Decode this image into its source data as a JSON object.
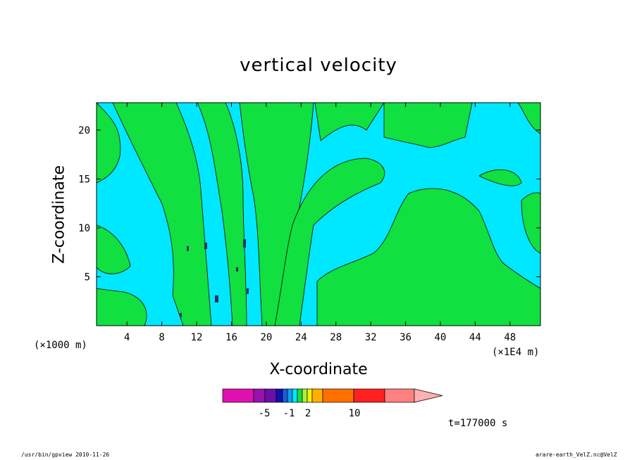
{
  "chart_data": {
    "type": "heatmap",
    "title": "vertical velocity",
    "xlabel": "X-coordinate",
    "ylabel": "Z-coordinate",
    "x_unit_left": "(×1000 m)",
    "x_unit_right": "(×1E4 m)",
    "xticks": [
      4,
      8,
      12,
      16,
      20,
      24,
      28,
      32,
      36,
      40,
      44,
      48
    ],
    "yticks": [
      5,
      10,
      15,
      20
    ],
    "xlim": [
      0.5,
      51.5
    ],
    "ylim": [
      0,
      22.8
    ],
    "colorbar": {
      "levels": [
        -7,
        -5,
        -3,
        -2,
        -1,
        0,
        1,
        2,
        3,
        5,
        10,
        15,
        20
      ],
      "tick_labels": [
        {
          "label": "-5",
          "value": -5
        },
        {
          "label": "-1",
          "value": -1
        },
        {
          "label": "2",
          "value": 2
        },
        {
          "label": "10",
          "value": 10
        }
      ],
      "colors": [
        "#e010b0",
        "#9a10b0",
        "#6a10a8",
        "#1010b0",
        "#1060e0",
        "#10a0f0",
        "#00e8ff",
        "#10e040",
        "#a8f040",
        "#f8f000",
        "#ffb000",
        "#ff7000",
        "#ff2020",
        "#ff8080"
      ]
    },
    "colors": {
      "negative": "#00e8ff",
      "positive": "#10e040",
      "strong_negative": "#1010b0",
      "strong_positive": "#ffb000"
    },
    "time": "t=177000 s"
  },
  "footer": {
    "left": "/usr/bin/gpview   2010-11-26",
    "right": "arare-earth_VelZ.nc@VelZ"
  }
}
